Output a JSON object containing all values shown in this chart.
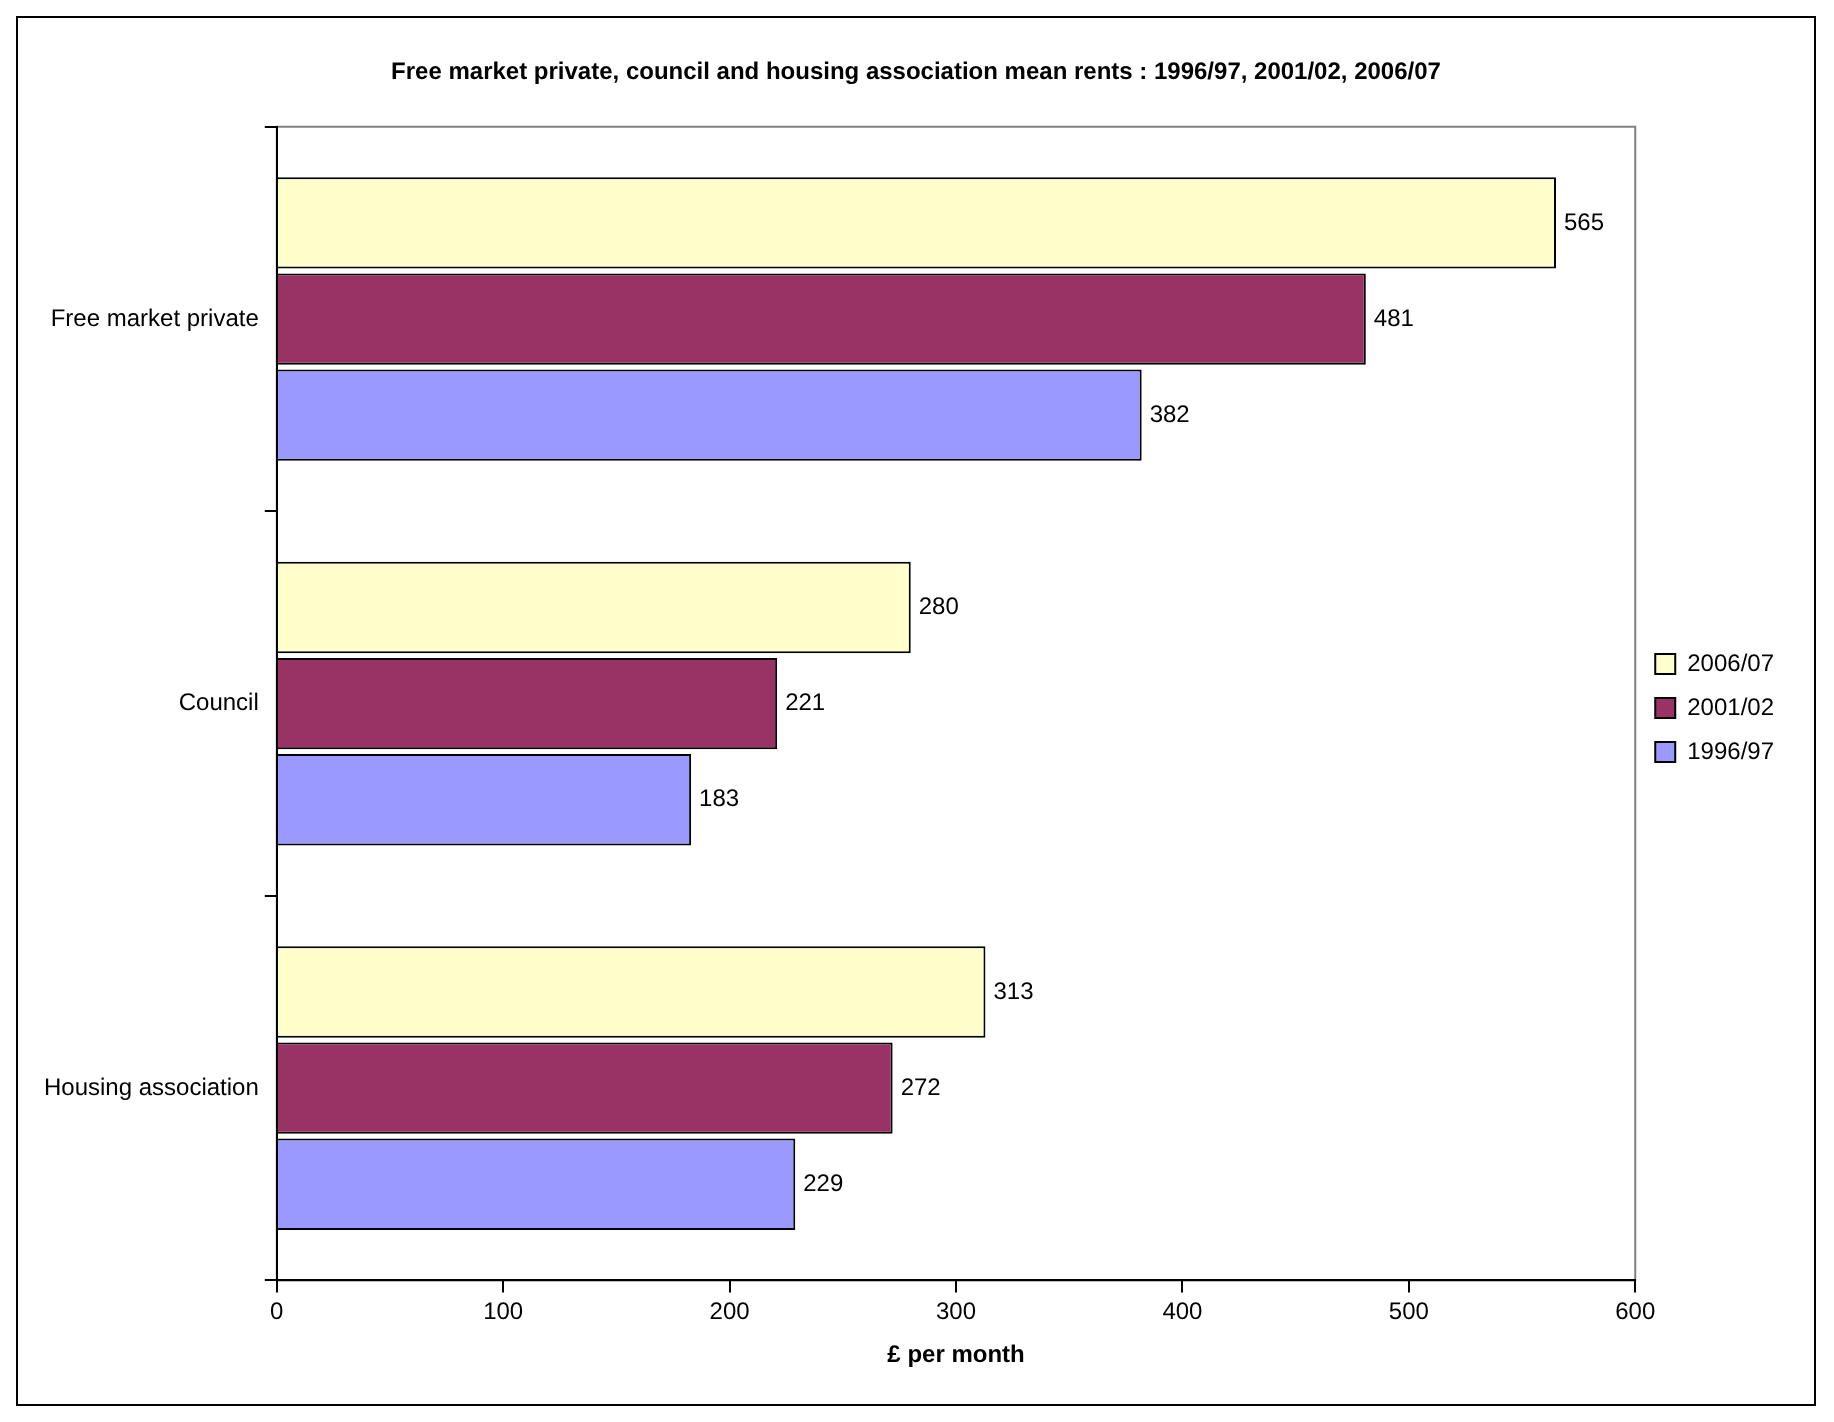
{
  "chart_data": {
    "type": "bar",
    "orientation": "horizontal",
    "title": "Free market private, council and housing association mean rents : 1996/97, 2001/02, 2006/07",
    "xlabel": "£ per month",
    "categories": [
      "Free market private",
      "Council",
      "Housing association"
    ],
    "series": [
      {
        "name": "2006/07",
        "color": "#ffffcc",
        "values": [
          565,
          280,
          313
        ]
      },
      {
        "name": "2001/02",
        "color": "#993366",
        "values": [
          481,
          221,
          272
        ]
      },
      {
        "name": "1996/97",
        "color": "#9999ff",
        "values": [
          382,
          183,
          229
        ]
      }
    ],
    "xlim": [
      0,
      600
    ],
    "xticks": [
      0,
      100,
      200,
      300,
      400,
      500,
      600
    ],
    "grid": false,
    "legend": "right",
    "data_labels": true
  }
}
